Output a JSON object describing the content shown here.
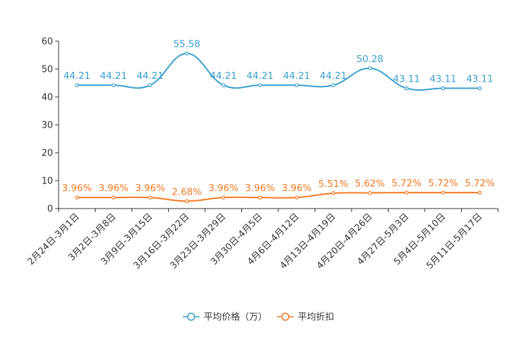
{
  "chart_data": {
    "type": "line",
    "categories": [
      "2月24日-3月1日",
      "3月2日-3月8日",
      "3月9日-3月15日",
      "3月16日-3月22日",
      "3月23日-3月29日",
      "3月30日-4月5日",
      "4月6日-4月12日",
      "4月13日-4月19日",
      "4月20日-4月26日",
      "4月27日-5月3日",
      "5月4日-5月10日",
      "5月11日-5月17日"
    ],
    "series": [
      {
        "name": "平均价格（万）",
        "color": "#3a9fcf",
        "values": [
          44.21,
          44.21,
          44.21,
          55.58,
          44.21,
          44.21,
          44.21,
          44.21,
          50.28,
          43.11,
          43.11,
          43.11
        ],
        "labels": [
          "44.21",
          "44.21",
          "44.21",
          "55.58",
          "44.21",
          "44.21",
          "44.21",
          "44.21",
          "50.28",
          "43.11",
          "43.11",
          "43.11"
        ]
      },
      {
        "name": "平均折扣",
        "color": "#f47920",
        "values": [
          3.96,
          3.96,
          3.96,
          2.68,
          3.96,
          3.96,
          3.96,
          5.51,
          5.62,
          5.72,
          5.72,
          5.72
        ],
        "labels": [
          "3.96%",
          "3.96%",
          "3.96%",
          "2.68%",
          "3.96%",
          "3.96%",
          "3.96%",
          "5.51%",
          "5.62%",
          "5.72%",
          "5.72%",
          "5.72%"
        ]
      }
    ],
    "yticks": [
      "0",
      "10",
      "20",
      "30",
      "40",
      "50",
      "60"
    ],
    "ylim": [
      0,
      60
    ],
    "legend": "bottom-center",
    "title": "",
    "xlabel": "",
    "ylabel": ""
  }
}
